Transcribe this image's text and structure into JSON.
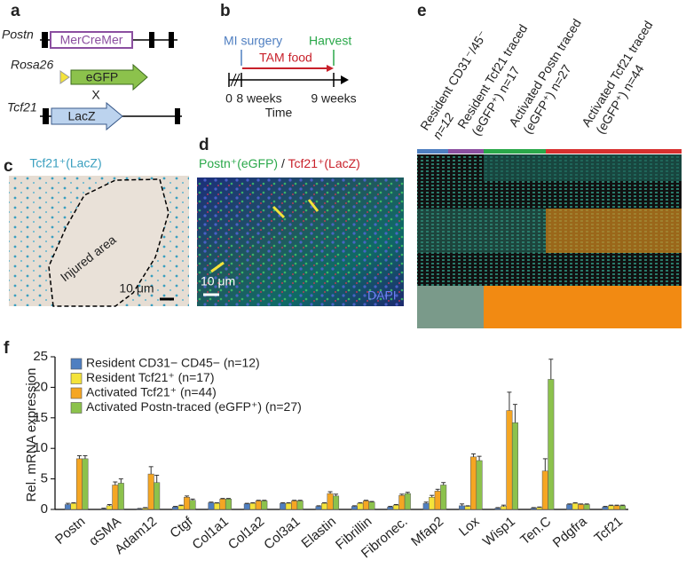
{
  "panels": {
    "a": {
      "letter": "a",
      "postn": "Postn",
      "mcm": "MerCreMer",
      "rosa": "Rosa26",
      "egfp": "eGFP",
      "cross": "X",
      "tcf": "Tcf21",
      "lacz": "LacZ"
    },
    "b": {
      "letter": "b",
      "surgery": "MI surgery",
      "harvest": "Harvest",
      "tam": "TAM food",
      "t0": "0",
      "t8": "8 weeks",
      "t9": "9 weeks",
      "time": "Time"
    },
    "c": {
      "letter": "c",
      "title": "Tcf21⁺(LacZ)",
      "area": "Injured area",
      "scale": "10 μm"
    },
    "d": {
      "letter": "d",
      "green": "Postn⁺(eGFP)",
      "slash": " / ",
      "red": "Tcf21⁺(LacZ)",
      "scale": "10 μm",
      "dapi": "DAPI"
    },
    "e": {
      "letter": "e",
      "columns": [
        {
          "label": "Resident CD31⁻/45⁻",
          "n": "n=12"
        },
        {
          "label": "Resident Tcf21 traced",
          "n": "(eGFP⁺) n=17"
        },
        {
          "label": "Activated Postn traced",
          "n": "(eGFP⁺) n=27"
        },
        {
          "label": "Activated Tcf21 traced",
          "n": "(eGFP⁺) n=44"
        }
      ]
    }
  },
  "chart_data": {
    "type": "bar",
    "letter": "f",
    "ylabel": "Rel. mRNA expression",
    "categories": [
      "Postn",
      "αSMA",
      "Adam12",
      "Ctgf",
      "Col1a1",
      "Col1a2",
      "Col3a1",
      "Elastin",
      "Fibrillin",
      "Fibronec.",
      "Mfap2",
      "Lox",
      "Wisp1",
      "Ten.C",
      "Pdgfra",
      "Tcf21"
    ],
    "series": [
      {
        "name": "Resident CD31− CD45− (n=12)",
        "color": "#4f7fc1",
        "values": [
          0.8,
          0.1,
          0.1,
          0.4,
          1.1,
          0.9,
          1.0,
          0.5,
          0.5,
          0.4,
          1.0,
          0.6,
          0.2,
          0.2,
          0.8,
          0.4
        ],
        "errors": [
          0.2,
          0.1,
          0.05,
          0.1,
          0.1,
          0.1,
          0.1,
          0.1,
          0.1,
          0.1,
          0.2,
          0.3,
          0.1,
          0.1,
          0.1,
          0.1
        ]
      },
      {
        "name": "Resident Tcf21⁺ (n=17)",
        "color": "#f4e33a",
        "values": [
          1.0,
          0.6,
          0.2,
          0.6,
          1.0,
          1.0,
          1.0,
          1.0,
          1.0,
          0.7,
          2.0,
          0.5,
          0.5,
          0.3,
          1.0,
          0.6
        ],
        "errors": [
          0.1,
          0.2,
          0.1,
          0.1,
          0.1,
          0.1,
          0.1,
          0.1,
          0.1,
          0.1,
          0.3,
          0.1,
          0.2,
          0.1,
          0.1,
          0.1
        ]
      },
      {
        "name": "Activated Tcf21⁺ (n=44)",
        "color": "#f5a623",
        "values": [
          8.3,
          4.0,
          5.8,
          2.0,
          1.7,
          1.4,
          1.4,
          2.6,
          1.4,
          2.3,
          3.0,
          8.6,
          16.2,
          6.3,
          0.8,
          0.6
        ],
        "errors": [
          0.5,
          0.5,
          1.2,
          0.2,
          0.1,
          0.1,
          0.1,
          0.3,
          0.1,
          0.2,
          0.3,
          0.5,
          3.0,
          2.0,
          0.1,
          0.1
        ]
      },
      {
        "name": "Activated Postn-traced (eGFP⁺) (n=27)",
        "color": "#8cc24c",
        "values": [
          8.3,
          4.3,
          4.4,
          1.5,
          1.7,
          1.4,
          1.4,
          2.2,
          1.2,
          2.6,
          4.0,
          8.0,
          14.2,
          21.3,
          0.8,
          0.6
        ],
        "errors": [
          0.5,
          0.7,
          1.2,
          0.2,
          0.1,
          0.1,
          0.1,
          0.3,
          0.1,
          0.2,
          0.4,
          0.7,
          3.0,
          3.3,
          0.1,
          0.1
        ]
      }
    ],
    "ylim": [
      0,
      25
    ],
    "yticks": [
      0,
      5,
      10,
      15,
      20,
      25
    ]
  }
}
